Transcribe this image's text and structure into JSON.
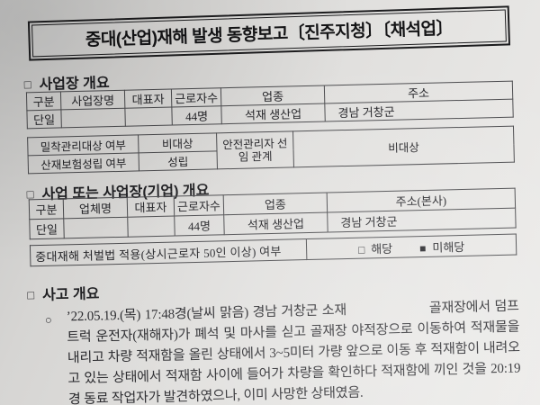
{
  "title": "중대(산업)재해 발생 동향보고〔진주지청〕〔채석업〕",
  "sections": {
    "workplace": {
      "marker": "□",
      "label": "사업장 개요"
    },
    "business": {
      "marker": "□",
      "label": "사업 또는 사업장(기업) 개요"
    },
    "accident": {
      "marker": "□",
      "label": "사고 개요"
    }
  },
  "workplace_table": {
    "headers": [
      "구분",
      "사업장명",
      "대표자",
      "근로자수",
      "업종",
      "주소"
    ],
    "row": [
      "단일",
      "",
      "",
      "44명",
      "석재 생산업",
      "경남 거창군"
    ]
  },
  "management_table": {
    "rows": [
      {
        "label": "밀착관리대상 여부",
        "value": "비대상"
      },
      {
        "label": "산재보험성립 여부",
        "value": "성립"
      }
    ],
    "right_label": "안전관리자 선임 관계",
    "right_value": "비대상"
  },
  "business_table": {
    "headers": [
      "구분",
      "업체명",
      "대표자",
      "근로자수",
      "업종",
      "주소(본사)"
    ],
    "row": [
      "단일",
      "",
      "",
      "44명",
      "석재 생산업",
      "경남 거창군"
    ]
  },
  "punishment_row": {
    "label": "중대재해 처벌법 적용(상시근로자 50인 이상) 여부",
    "options": [
      {
        "box": "□",
        "label": "해당",
        "checked": false
      },
      {
        "box": "■",
        "label": "미해당",
        "checked": true
      }
    ]
  },
  "accident": {
    "bullet": "○",
    "text_before_gap": "’22.05.19.(목) 17:48경(날씨 맑음) 경남 거창군 소재",
    "text_after_gap": "골재장에서 덤프트럭 운전자(재해자)가 폐석 및 마사를 싣고 골재장 야적장으로 이동하여 적재물을 내리고 차량 적재함을 올린 상태에서 3~5미터 가량 앞으로 이동 후 적재함이 내려오고 있는 상태에서 적재함 사이에 들어가 차량을 확인하다 적재함에 끼인 것을 20:19경 동료 작업자가 발견하였으나, 이미 사망한 상태였음."
  },
  "colors": {
    "paper": "#dedddb",
    "ink": "#1e1e20",
    "border": "#3c3c3c"
  }
}
